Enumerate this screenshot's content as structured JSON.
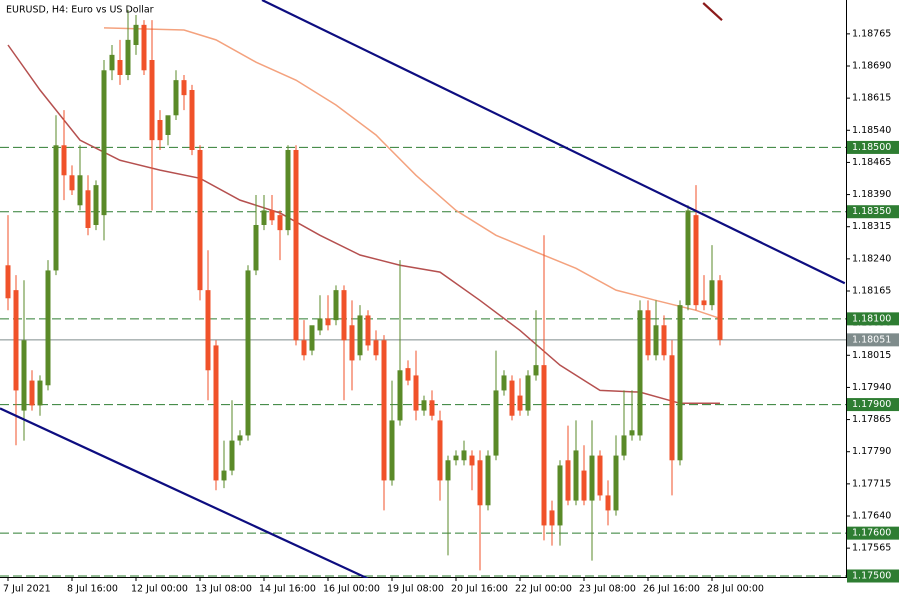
{
  "chart_data": {
    "type": "candlestick",
    "title": "EURUSD, H4:  Euro vs US Dollar",
    "categories": [
      "7 Jul 2021",
      null,
      null,
      null,
      null,
      null,
      null,
      null,
      "8 Jul 16:00",
      null,
      null,
      null,
      null,
      null,
      null,
      null,
      "12 Jul 00:00",
      null,
      null,
      null,
      null,
      null,
      null,
      null,
      "13 Jul 08:00",
      null,
      null,
      null,
      null,
      null,
      null,
      null,
      "14 Jul 16:00",
      null,
      null,
      null,
      null,
      null,
      null,
      null,
      "16 Jul 00:00",
      null,
      null,
      null,
      null,
      null,
      null,
      null,
      "19 Jul 08:00",
      null,
      null,
      null,
      null,
      null,
      null,
      null,
      "20 Jul 16:00",
      null,
      null,
      null,
      null,
      null,
      null,
      null,
      "22 Jul 00:00",
      null,
      null,
      null,
      null,
      null,
      null,
      null,
      "23 Jul 08:00",
      null,
      null,
      null,
      null,
      null,
      null,
      null,
      "26 Jul 16:00",
      null,
      null,
      null,
      null,
      null,
      null,
      null,
      "28 Jul 00:00",
      null
    ],
    "open": [
      1.18225,
      1.18167,
      1.17886,
      1.17956,
      1.17898,
      1.17945,
      1.18213,
      1.18505,
      1.18435,
      1.18365,
      1.184,
      1.18319,
      1.18342,
      1.1868,
      1.18704,
      1.18669,
      1.18739,
      1.18786,
      1.18704,
      1.18564,
      1.18529,
      1.18575,
      1.18657,
      1.18634,
      1.18494,
      1.18167,
      1.18038,
      1.17723,
      1.17746,
      1.17816,
      1.17828,
      1.18213,
      1.18319,
      1.18353,
      1.18342,
      1.18307,
      1.18494,
      1.1805,
      1.18026,
      1.18073,
      1.18101,
      1.18097,
      1.18167,
      1.18085,
      1.18015,
      1.18108,
      1.1805,
      1.1805,
      1.17723,
      1.17863,
      1.17985,
      1.17968,
      1.17886,
      1.1791,
      1.17863,
      1.17723,
      1.1777,
      1.1777,
      1.17781,
      1.1777,
      1.17665,
      1.17781,
      1.17933,
      1.17956,
      1.17921,
      1.17886,
      1.17968,
      1.17992,
      1.17653,
      1.17618,
      1.1777,
      1.17676,
      1.17746,
      1.17676,
      1.17781,
      1.17688,
      1.17653,
      1.17781,
      1.17828,
      1.17828,
      1.1812,
      1.18015,
      1.18085,
      1.18015,
      1.1777,
      1.18132,
      1.18342,
      1.18143,
      1.18132,
      1.1819
    ],
    "high": [
      1.18342,
      1.18202,
      1.1819,
      1.1798,
      1.17968,
      1.18237,
      1.18575,
      1.18587,
      1.18458,
      1.18505,
      1.18435,
      1.18423,
      1.18704,
      1.18739,
      1.18751,
      1.18821,
      1.18809,
      1.18797,
      1.18797,
      1.18587,
      1.18564,
      1.1868,
      1.18669,
      1.18646,
      1.18505,
      1.1826,
      1.1805,
      1.17816,
      1.1791,
      1.1784,
      1.18225,
      1.18389,
      1.18389,
      1.18389,
      1.18353,
      1.18505,
      1.18505,
      1.18097,
      1.18073,
      1.18155,
      1.18155,
      1.18178,
      1.18178,
      1.18143,
      1.18132,
      1.1812,
      1.18073,
      1.18062,
      1.17956,
      1.18237,
      1.18003,
      1.18026,
      1.17921,
      1.17933,
      1.17886,
      1.17781,
      1.17793,
      1.17816,
      1.17793,
      1.17793,
      1.17793,
      1.18026,
      1.1798,
      1.17968,
      1.17961,
      1.1798,
      1.1812,
      1.18295,
      1.17676,
      1.1777,
      1.17851,
      1.17863,
      1.17805,
      1.17863,
      1.17793,
      1.17723,
      1.17828,
      1.17933,
      1.17933,
      1.18143,
      1.18143,
      1.18143,
      1.18108,
      1.1805,
      1.18143,
      1.18365,
      1.18412,
      1.18202,
      1.18272,
      1.18202
    ],
    "low": [
      1.1812,
      1.17805,
      1.17816,
      1.17886,
      1.17874,
      1.17933,
      1.18202,
      1.18377,
      1.18389,
      1.18353,
      1.18295,
      1.18307,
      1.18283,
      1.18657,
      1.18646,
      1.18657,
      1.18716,
      1.18669,
      1.18353,
      1.18494,
      1.18505,
      1.18564,
      1.18587,
      1.18482,
      1.18143,
      1.1791,
      1.177,
      1.17705,
      1.17735,
      1.17805,
      1.17816,
      1.18202,
      1.18307,
      1.18319,
      1.18237,
      1.18295,
      1.18038,
      1.18003,
      1.18015,
      1.18062,
      1.18073,
      1.18085,
      1.1791,
      1.17933,
      1.18003,
      1.18026,
      1.18003,
      1.17653,
      1.17711,
      1.17851,
      1.17945,
      1.17863,
      1.17874,
      1.17863,
      1.17676,
      1.17548,
      1.17758,
      1.17758,
      1.177,
      1.17513,
      1.17653,
      1.1777,
      1.17921,
      1.17863,
      1.17874,
      1.17874,
      1.17956,
      1.17583,
      1.17571,
      1.17571,
      1.17665,
      1.17665,
      1.17665,
      1.17536,
      1.17676,
      1.17618,
      1.17641,
      1.1777,
      1.17816,
      1.17816,
      1.18003,
      1.18003,
      1.18003,
      1.17688,
      1.17758,
      1.1812,
      1.1812,
      1.1812,
      1.1812,
      1.18038
    ],
    "close": [
      1.18148,
      1.17933,
      1.1805,
      1.17898,
      1.17956,
      1.18213,
      1.18505,
      1.18435,
      1.184,
      1.18435,
      1.18312,
      1.18412,
      1.1868,
      1.18716,
      1.18669,
      1.18751,
      1.18786,
      1.1868,
      1.18517,
      1.18517,
      1.18575,
      1.18657,
      1.18622,
      1.18494,
      1.18167,
      1.1798,
      1.17723,
      1.17746,
      1.17816,
      1.17828,
      1.18213,
      1.18319,
      1.18353,
      1.1833,
      1.18307,
      1.18494,
      1.1805,
      1.18015,
      1.18085,
      1.18101,
      1.18085,
      1.18167,
      1.1805,
      1.18003,
      1.18108,
      1.18038,
      1.18015,
      1.17723,
      1.17863,
      1.1798,
      1.17956,
      1.17886,
      1.1791,
      1.17874,
      1.17723,
      1.1777,
      1.17781,
      1.17793,
      1.17758,
      1.17665,
      1.17781,
      1.17933,
      1.17968,
      1.17874,
      1.17886,
      1.17968,
      1.17992,
      1.17618,
      1.17618,
      1.17758,
      1.17676,
      1.17793,
      1.17676,
      1.17781,
      1.17688,
      1.17653,
      1.17781,
      1.17828,
      1.1784,
      1.1812,
      1.18015,
      1.18085,
      1.18015,
      1.1777,
      1.18132,
      1.18353,
      1.18132,
      1.18132,
      1.1819,
      1.18051
    ],
    "up_color": "#5a8a28",
    "down_color": "#f0522a",
    "ylim": [
      1.17486,
      1.18844
    ],
    "yticks": [
      1.18765,
      {
        "value": 1.1869,
        "label": "1.18690"
      },
      1.18615,
      {
        "value": 1.1854,
        "label": "1.18540"
      },
      1.18465,
      {
        "value": 1.1839,
        "label": "1.18390"
      },
      1.18315,
      {
        "value": 1.1824,
        "label": "1.18240"
      },
      1.18165,
      {
        "value": 1.1809,
        "label": "1.18090"
      },
      1.18015,
      {
        "value": 1.1794,
        "label": "1.17940"
      },
      1.17865,
      {
        "value": 1.1779,
        "label": "1.17790"
      },
      1.17715,
      {
        "value": 1.1764,
        "label": "1.17640"
      },
      1.17565
    ],
    "levels": [
      {
        "value": 1.185,
        "label": "1.18500"
      },
      {
        "value": 1.1835,
        "label": "1.18350"
      },
      {
        "value": 1.181,
        "label": "1.18100"
      },
      {
        "value": 1.179,
        "label": "1.17900"
      },
      {
        "value": 1.176,
        "label": "1.17600"
      },
      {
        "value": 1.175,
        "label": "1.17500"
      }
    ],
    "level_color": "#2e7d32",
    "current_price": 1.18051,
    "current_color": "#7f8c8c",
    "series": [
      {
        "color": "#f4a27e",
        "x": [
          12,
          22,
          26,
          31,
          36,
          41,
          46,
          51,
          56,
          61,
          66,
          71,
          76,
          81,
          86,
          89
        ],
        "values": [
          1.18779,
          1.18774,
          1.18751,
          1.18699,
          1.18657,
          1.18599,
          1.18529,
          1.18435,
          1.18353,
          1.18295,
          1.18256,
          1.18218,
          1.18167,
          1.18143,
          1.1812,
          1.18101
        ]
      },
      {
        "color": "#b5504f",
        "x": [
          0,
          4,
          9,
          14,
          19,
          24,
          29,
          34,
          39,
          44,
          49,
          54,
          59,
          64,
          69,
          74,
          79,
          84,
          89
        ],
        "values": [
          1.18739,
          1.18634,
          1.18517,
          1.1847,
          1.18447,
          1.18428,
          1.18377,
          1.18347,
          1.18295,
          1.18249,
          1.18225,
          1.18209,
          1.18143,
          1.18073,
          1.17992,
          1.17933,
          1.17929,
          1.17903,
          1.17903
        ]
      }
    ],
    "trendlines": [
      {
        "color": "#0d0d80",
        "x": [
          31.75,
          104.6
        ],
        "values": [
          1.18844,
          1.18183
        ]
      },
      {
        "color": "#0d0d80",
        "x": [
          -1,
          45
        ],
        "values": [
          1.17891,
          1.17494
        ]
      },
      {
        "color": "#8b1a1a",
        "x": [
          86.9,
          89.25
        ],
        "values": [
          1.18837,
          1.18797
        ]
      }
    ]
  }
}
